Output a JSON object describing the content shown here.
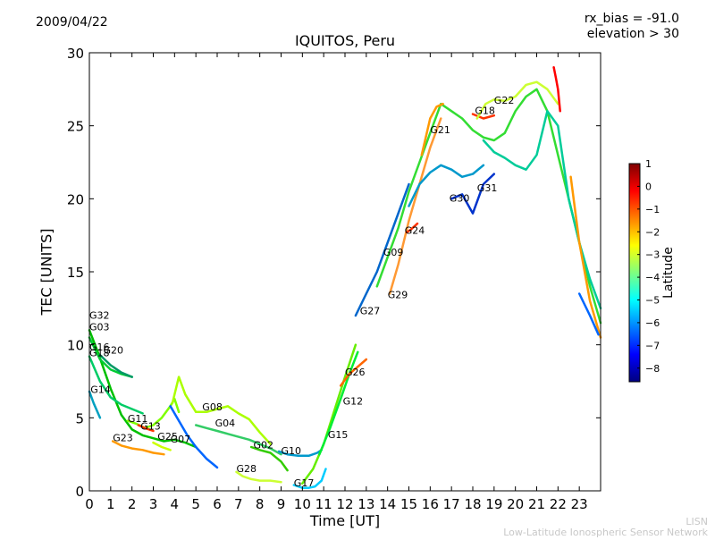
{
  "header": {
    "date": "2009/04/22",
    "rx_bias": "rx_bias = -91.0",
    "elevation": "elevation > 30"
  },
  "footer": {
    "line1": "LISN",
    "line2": "Low-Latitude Ionospheric Sensor Network"
  },
  "colorbar": {
    "label": "Latitude",
    "ticks": [
      "1",
      "0",
      "−1",
      "−2",
      "−3",
      "−4",
      "−5",
      "−6",
      "−7",
      "−8"
    ],
    "range": [
      -8.6,
      1
    ],
    "colormap": [
      "#00007f",
      "#0000ff",
      "#007fff",
      "#00ffff",
      "#7fff7f",
      "#ffff00",
      "#ff7f00",
      "#ff0000",
      "#7f0000"
    ]
  },
  "chart_data": {
    "type": "line",
    "title": "IQUITOS, Peru",
    "xlabel": "Time [UT]",
    "ylabel": "TEC [UNITS]",
    "xlim": [
      0,
      24
    ],
    "ylim": [
      0,
      30
    ],
    "xticks": [
      0,
      1,
      2,
      3,
      4,
      5,
      6,
      7,
      8,
      9,
      10,
      11,
      12,
      13,
      14,
      15,
      16,
      17,
      18,
      19,
      20,
      21,
      22,
      23
    ],
    "yticks": [
      0,
      5,
      10,
      15,
      20,
      25,
      30
    ],
    "grid": false,
    "series": [
      {
        "name": "G32",
        "color": "#00c000",
        "x": [
          0.0,
          0.4,
          1.0,
          1.5,
          2.0,
          2.5,
          3.0,
          3.5,
          4.0,
          4.5,
          5.0
        ],
        "y": [
          11.0,
          9.5,
          7.0,
          5.2,
          4.2,
          3.8,
          3.6,
          3.4,
          3.5,
          3.3,
          3.0
        ]
      },
      {
        "name": "G03",
        "color": "#00cc33",
        "x": [
          0.0,
          0.5,
          1.0,
          1.5,
          2.0
        ],
        "y": [
          10.5,
          9.0,
          8.3,
          8.0,
          7.8
        ]
      },
      {
        "name": "G20",
        "color": "#009966",
        "x": [
          0.5,
          1.0,
          1.5,
          2.0
        ],
        "y": [
          9.3,
          8.6,
          8.1,
          7.8
        ]
      },
      {
        "name": "G16",
        "color": "#00cc66",
        "x": [
          0.0,
          0.5,
          1.0,
          1.5,
          2.0,
          2.5
        ],
        "y": [
          9.2,
          7.5,
          6.4,
          5.9,
          5.6,
          5.3
        ]
      },
      {
        "name": "G14",
        "color": "#00a0c0",
        "x": [
          0.0,
          0.2,
          0.5
        ],
        "y": [
          6.8,
          6.0,
          5.0
        ]
      },
      {
        "name": "G11",
        "color": "#7fff00",
        "x": [
          1.8,
          2.2,
          2.6,
          3.0,
          3.4,
          3.8,
          4.0,
          4.2
        ],
        "y": [
          4.8,
          4.6,
          4.3,
          4.5,
          5.0,
          5.8,
          6.3,
          5.4
        ]
      },
      {
        "name": "G13",
        "color": "#ff3300",
        "x": [
          2.3,
          2.6,
          3.0
        ],
        "y": [
          4.5,
          4.3,
          4.1
        ]
      },
      {
        "name": "G23",
        "color": "#ff9900",
        "x": [
          1.1,
          1.5,
          2.0,
          2.5,
          3.0,
          3.5
        ],
        "y": [
          3.4,
          3.1,
          2.9,
          2.8,
          2.6,
          2.5
        ]
      },
      {
        "name": "G25",
        "color": "#ccff00",
        "x": [
          3.0,
          3.4,
          3.8
        ],
        "y": [
          3.3,
          3.0,
          2.8
        ]
      },
      {
        "name": "G07",
        "color": "#0066ff",
        "x": [
          3.8,
          4.2,
          4.6,
          5.0,
          5.5,
          6.0
        ],
        "y": [
          5.8,
          4.8,
          3.8,
          3.0,
          2.2,
          1.6
        ]
      },
      {
        "name": "G08",
        "color": "#aaff00",
        "x": [
          3.9,
          4.2,
          4.5,
          5.0,
          5.5,
          6.0,
          6.5,
          7.0,
          7.5,
          8.0,
          8.5
        ],
        "y": [
          6.0,
          7.8,
          6.6,
          5.4,
          5.4,
          5.6,
          5.8,
          5.3,
          4.9,
          4.0,
          3.2
        ]
      },
      {
        "name": "G04",
        "color": "#33cc66",
        "x": [
          5.0,
          5.5,
          6.0,
          6.5,
          7.0,
          7.5,
          8.0,
          8.5,
          9.0
        ],
        "y": [
          4.5,
          4.3,
          4.1,
          3.9,
          3.7,
          3.5,
          3.2,
          2.9,
          2.5
        ]
      },
      {
        "name": "G28",
        "color": "#ccff33",
        "x": [
          6.9,
          7.2,
          7.6,
          8.0,
          8.5,
          9.0
        ],
        "y": [
          1.3,
          1.0,
          0.8,
          0.7,
          0.7,
          0.6
        ]
      },
      {
        "name": "G02",
        "color": "#33cc00",
        "x": [
          7.6,
          8.0,
          8.5,
          9.0,
          9.3
        ],
        "y": [
          3.0,
          2.8,
          2.6,
          2.0,
          1.4
        ]
      },
      {
        "name": "G10",
        "color": "#0099cc",
        "x": [
          8.9,
          9.3,
          9.8,
          10.3,
          10.7,
          10.9
        ],
        "y": [
          2.7,
          2.5,
          2.4,
          2.4,
          2.6,
          2.8
        ]
      },
      {
        "name": "G17",
        "color": "#00ccff",
        "x": [
          9.6,
          10.0,
          10.3,
          10.6,
          10.9,
          11.1
        ],
        "y": [
          0.4,
          0.2,
          0.2,
          0.3,
          0.7,
          1.5
        ]
      },
      {
        "name": "G15",
        "color": "#66ee00",
        "x": [
          10.0,
          10.5,
          11.0,
          11.5,
          12.0,
          12.5
        ],
        "y": [
          0.5,
          1.5,
          3.2,
          5.5,
          7.8,
          10.0
        ]
      },
      {
        "name": "G12",
        "color": "#00ee33",
        "x": [
          10.8,
          11.3,
          11.8,
          12.2,
          12.6
        ],
        "y": [
          2.5,
          4.3,
          6.3,
          8.0,
          9.5
        ]
      },
      {
        "name": "G26",
        "color": "#ff6600",
        "x": [
          11.8,
          12.2,
          12.6,
          13.0
        ],
        "y": [
          7.2,
          8.0,
          8.5,
          9.0
        ]
      },
      {
        "name": "G27",
        "color": "#0066cc",
        "x": [
          12.5,
          13.0,
          13.5,
          14.0,
          14.5,
          15.0
        ],
        "y": [
          12.0,
          13.5,
          15.0,
          17.0,
          19.0,
          21.0
        ]
      },
      {
        "name": "G09",
        "color": "#33dd33",
        "x": [
          13.5,
          14.0,
          14.5,
          15.0,
          15.5,
          16.0,
          16.5,
          17.0,
          17.5,
          18.0,
          18.5,
          19.0,
          19.5,
          20.0,
          20.5,
          21.0,
          21.5,
          22.0,
          22.5,
          23.0,
          23.5,
          24.0
        ],
        "y": [
          14.0,
          16.0,
          18.0,
          20.5,
          22.5,
          24.5,
          26.5,
          26.0,
          25.5,
          24.7,
          24.2,
          24.0,
          24.5,
          26.0,
          27.0,
          27.5,
          26.0,
          23.0,
          20.0,
          17.0,
          14.0,
          11.5
        ]
      },
      {
        "name": "G29",
        "color": "#ff9933",
        "x": [
          14.1,
          14.5,
          15.0,
          15.5,
          16.0,
          16.5
        ],
        "y": [
          13.5,
          15.5,
          18.5,
          21.0,
          23.5,
          25.5
        ]
      },
      {
        "name": "G24",
        "color": "#ff3300",
        "x": [
          14.9,
          15.1,
          15.4
        ],
        "y": [
          17.7,
          17.9,
          18.3
        ]
      },
      {
        "name": "G21",
        "color": "#ff9900",
        "x": [
          15.6,
          16.0,
          16.3,
          16.6
        ],
        "y": [
          23.0,
          25.5,
          26.3,
          26.5
        ]
      },
      {
        "name": "G30",
        "color": "#0099cc",
        "x": [
          15.0,
          15.5,
          16.0,
          16.5,
          17.0,
          17.5,
          18.0,
          18.5
        ],
        "y": [
          19.5,
          21.0,
          21.8,
          22.3,
          22.0,
          21.5,
          21.7,
          22.3
        ]
      },
      {
        "name": "G31",
        "color": "#0033cc",
        "x": [
          17.0,
          17.5,
          18.0,
          18.5,
          19.0
        ],
        "y": [
          20.0,
          20.3,
          19.0,
          21.0,
          21.7
        ]
      },
      {
        "name": "G18",
        "color": "#ff3300",
        "x": [
          18.0,
          18.5,
          19.0
        ],
        "y": [
          25.8,
          25.5,
          25.7
        ]
      },
      {
        "name": "G22",
        "color": "#ccff33",
        "x": [
          18.2,
          18.6,
          19.0,
          19.5,
          20.0,
          20.5,
          21.0,
          21.5,
          22.0
        ],
        "y": [
          25.5,
          26.5,
          26.8,
          26.7,
          27.0,
          27.8,
          28.0,
          27.5,
          26.5
        ]
      },
      {
        "name": "",
        "color": "#00cc99",
        "x": [
          18.5,
          19.0,
          19.5,
          20.0,
          20.5,
          21.0,
          21.5,
          22.0,
          22.5,
          23.0,
          23.5,
          24.0
        ],
        "y": [
          24.0,
          23.2,
          22.8,
          22.3,
          22.0,
          23.0,
          26.0,
          25.0,
          20.0,
          17.0,
          14.5,
          12.5
        ]
      },
      {
        "name": "",
        "color": "#ff0000",
        "x": [
          21.8,
          21.9,
          22.0,
          22.1
        ],
        "y": [
          29.0,
          28.3,
          27.5,
          26.0
        ]
      },
      {
        "name": "",
        "color": "#ff9900",
        "x": [
          22.6,
          23.0,
          23.5,
          24.0
        ],
        "y": [
          21.5,
          17.0,
          13.0,
          10.5
        ]
      },
      {
        "name": "",
        "color": "#0066ff",
        "x": [
          23.0,
          23.5,
          23.9
        ],
        "y": [
          13.5,
          12.0,
          10.7
        ]
      }
    ],
    "labels": [
      {
        "text": "G32",
        "x": 0.0,
        "y": 11.8
      },
      {
        "text": "G03",
        "x": 0.0,
        "y": 11.0
      },
      {
        "text": "G16",
        "x": 0.0,
        "y": 9.6
      },
      {
        "text": "G18",
        "x": 0.0,
        "y": 9.2
      },
      {
        "text": "G20",
        "x": 0.65,
        "y": 9.4
      },
      {
        "text": "G14",
        "x": 0.05,
        "y": 6.7
      },
      {
        "text": "G11",
        "x": 1.8,
        "y": 4.7
      },
      {
        "text": "G13",
        "x": 2.4,
        "y": 4.2
      },
      {
        "text": "G23",
        "x": 1.1,
        "y": 3.4
      },
      {
        "text": "G25",
        "x": 3.2,
        "y": 3.5
      },
      {
        "text": "G07",
        "x": 3.8,
        "y": 3.3
      },
      {
        "text": "G08",
        "x": 5.3,
        "y": 5.5
      },
      {
        "text": "G04",
        "x": 5.9,
        "y": 4.4
      },
      {
        "text": "G02",
        "x": 7.7,
        "y": 2.9
      },
      {
        "text": "G28",
        "x": 6.9,
        "y": 1.3
      },
      {
        "text": "G10",
        "x": 9.0,
        "y": 2.5
      },
      {
        "text": "G17",
        "x": 9.6,
        "y": 0.3
      },
      {
        "text": "G15",
        "x": 11.2,
        "y": 3.6
      },
      {
        "text": "G12",
        "x": 11.9,
        "y": 5.9
      },
      {
        "text": "G26",
        "x": 12.0,
        "y": 7.9
      },
      {
        "text": "G27",
        "x": 12.7,
        "y": 12.1
      },
      {
        "text": "G09",
        "x": 13.8,
        "y": 16.1
      },
      {
        "text": "G29",
        "x": 14.0,
        "y": 13.2
      },
      {
        "text": "G24",
        "x": 14.8,
        "y": 17.6
      },
      {
        "text": "G21",
        "x": 16.0,
        "y": 24.5
      },
      {
        "text": "G30",
        "x": 16.9,
        "y": 19.8
      },
      {
        "text": "G31",
        "x": 18.2,
        "y": 20.5
      },
      {
        "text": "G18",
        "x": 18.1,
        "y": 25.8
      },
      {
        "text": "G22",
        "x": 19.0,
        "y": 26.5
      }
    ]
  }
}
